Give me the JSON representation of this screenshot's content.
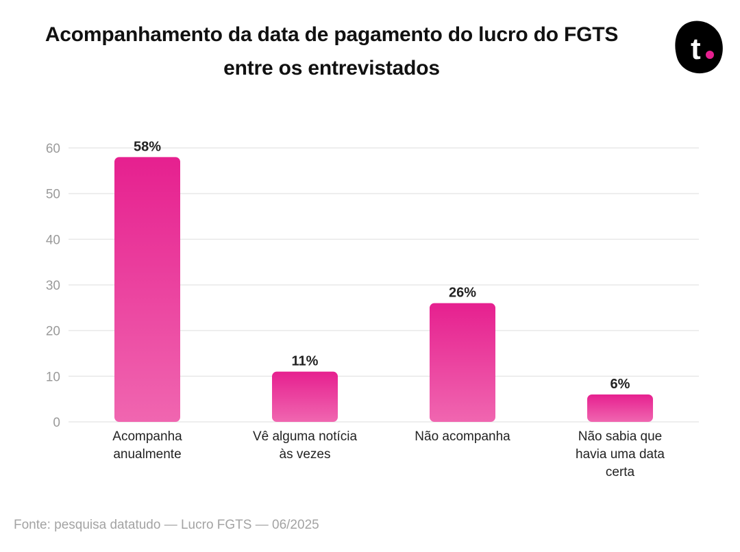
{
  "title_line1": "Acompanhamento da data de pagamento do lucro do FGTS",
  "title_line2": "entre os entrevistados",
  "brand_logo_letter": "t",
  "source": "Fonte: pesquisa datatudo — Lucro FGTS — 06/2025",
  "colors": {
    "bar_top": "#e6208f",
    "bar_bottom": "#f066b0",
    "grid": "#e8e8e8",
    "tick": "#9a9a9a",
    "label": "#222222",
    "logo_dot": "#e6208f"
  },
  "chart_data": {
    "type": "bar",
    "categories": [
      [
        "Acompanha",
        "anualmente"
      ],
      [
        "Vê alguma notícia",
        "às vezes"
      ],
      [
        "Não acompanha"
      ],
      [
        "Não sabia que",
        "havia uma data",
        "certa"
      ]
    ],
    "values": [
      58,
      11,
      26,
      6
    ],
    "data_labels": [
      "58%",
      "11%",
      "26%",
      "6%"
    ],
    "ylim": [
      0,
      60
    ],
    "yticks": [
      0,
      10,
      20,
      30,
      40,
      50,
      60
    ],
    "grid": true,
    "legend": "none"
  }
}
